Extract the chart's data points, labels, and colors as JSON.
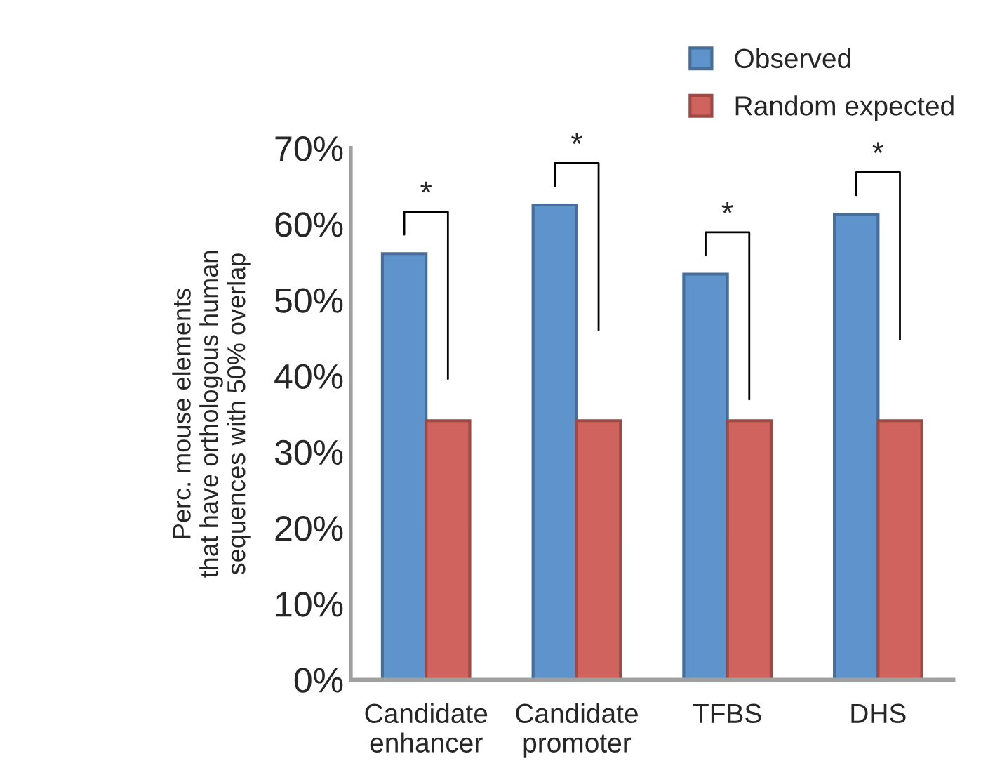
{
  "chart_data": {
    "type": "bar",
    "ylabel": "Perc. mouse elements\nthat have orthologous human\nsequences with 50% overlap",
    "categories": [
      "Candidate\nenhancer",
      "Candidate\npromoter",
      "TFBS",
      "DHS"
    ],
    "series": [
      {
        "name": "Observed",
        "color": "#5f93cb",
        "values": [
          56.1,
          62.5,
          53.4,
          61.3
        ]
      },
      {
        "name": "Random expected",
        "color": "#d0635e",
        "values": [
          34.1,
          34.1,
          34.1,
          34.1
        ]
      }
    ],
    "ylim": [
      0,
      70
    ],
    "yticks": [
      {
        "value": 0,
        "label": "0%"
      },
      {
        "value": 10,
        "label": "10%"
      },
      {
        "value": 20,
        "label": "20%"
      },
      {
        "value": 30,
        "label": "30%"
      },
      {
        "value": 40,
        "label": "40%"
      },
      {
        "value": 50,
        "label": "50%"
      },
      {
        "value": 60,
        "label": "60%"
      },
      {
        "value": 70,
        "label": "70%"
      }
    ],
    "annotations": [
      "*",
      "*",
      "*",
      "*"
    ],
    "grid": false,
    "legend": "top right"
  }
}
